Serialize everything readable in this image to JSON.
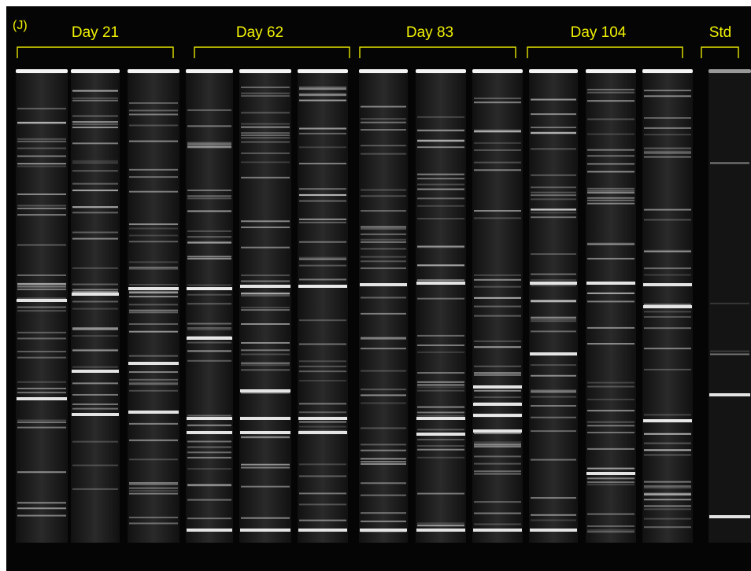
{
  "panel_label": "(J)",
  "groups": [
    {
      "label": "Day 21"
    },
    {
      "label": "Day 62"
    },
    {
      "label": "Day 83"
    },
    {
      "label": "Day 104"
    },
    {
      "label": "Std"
    }
  ]
}
